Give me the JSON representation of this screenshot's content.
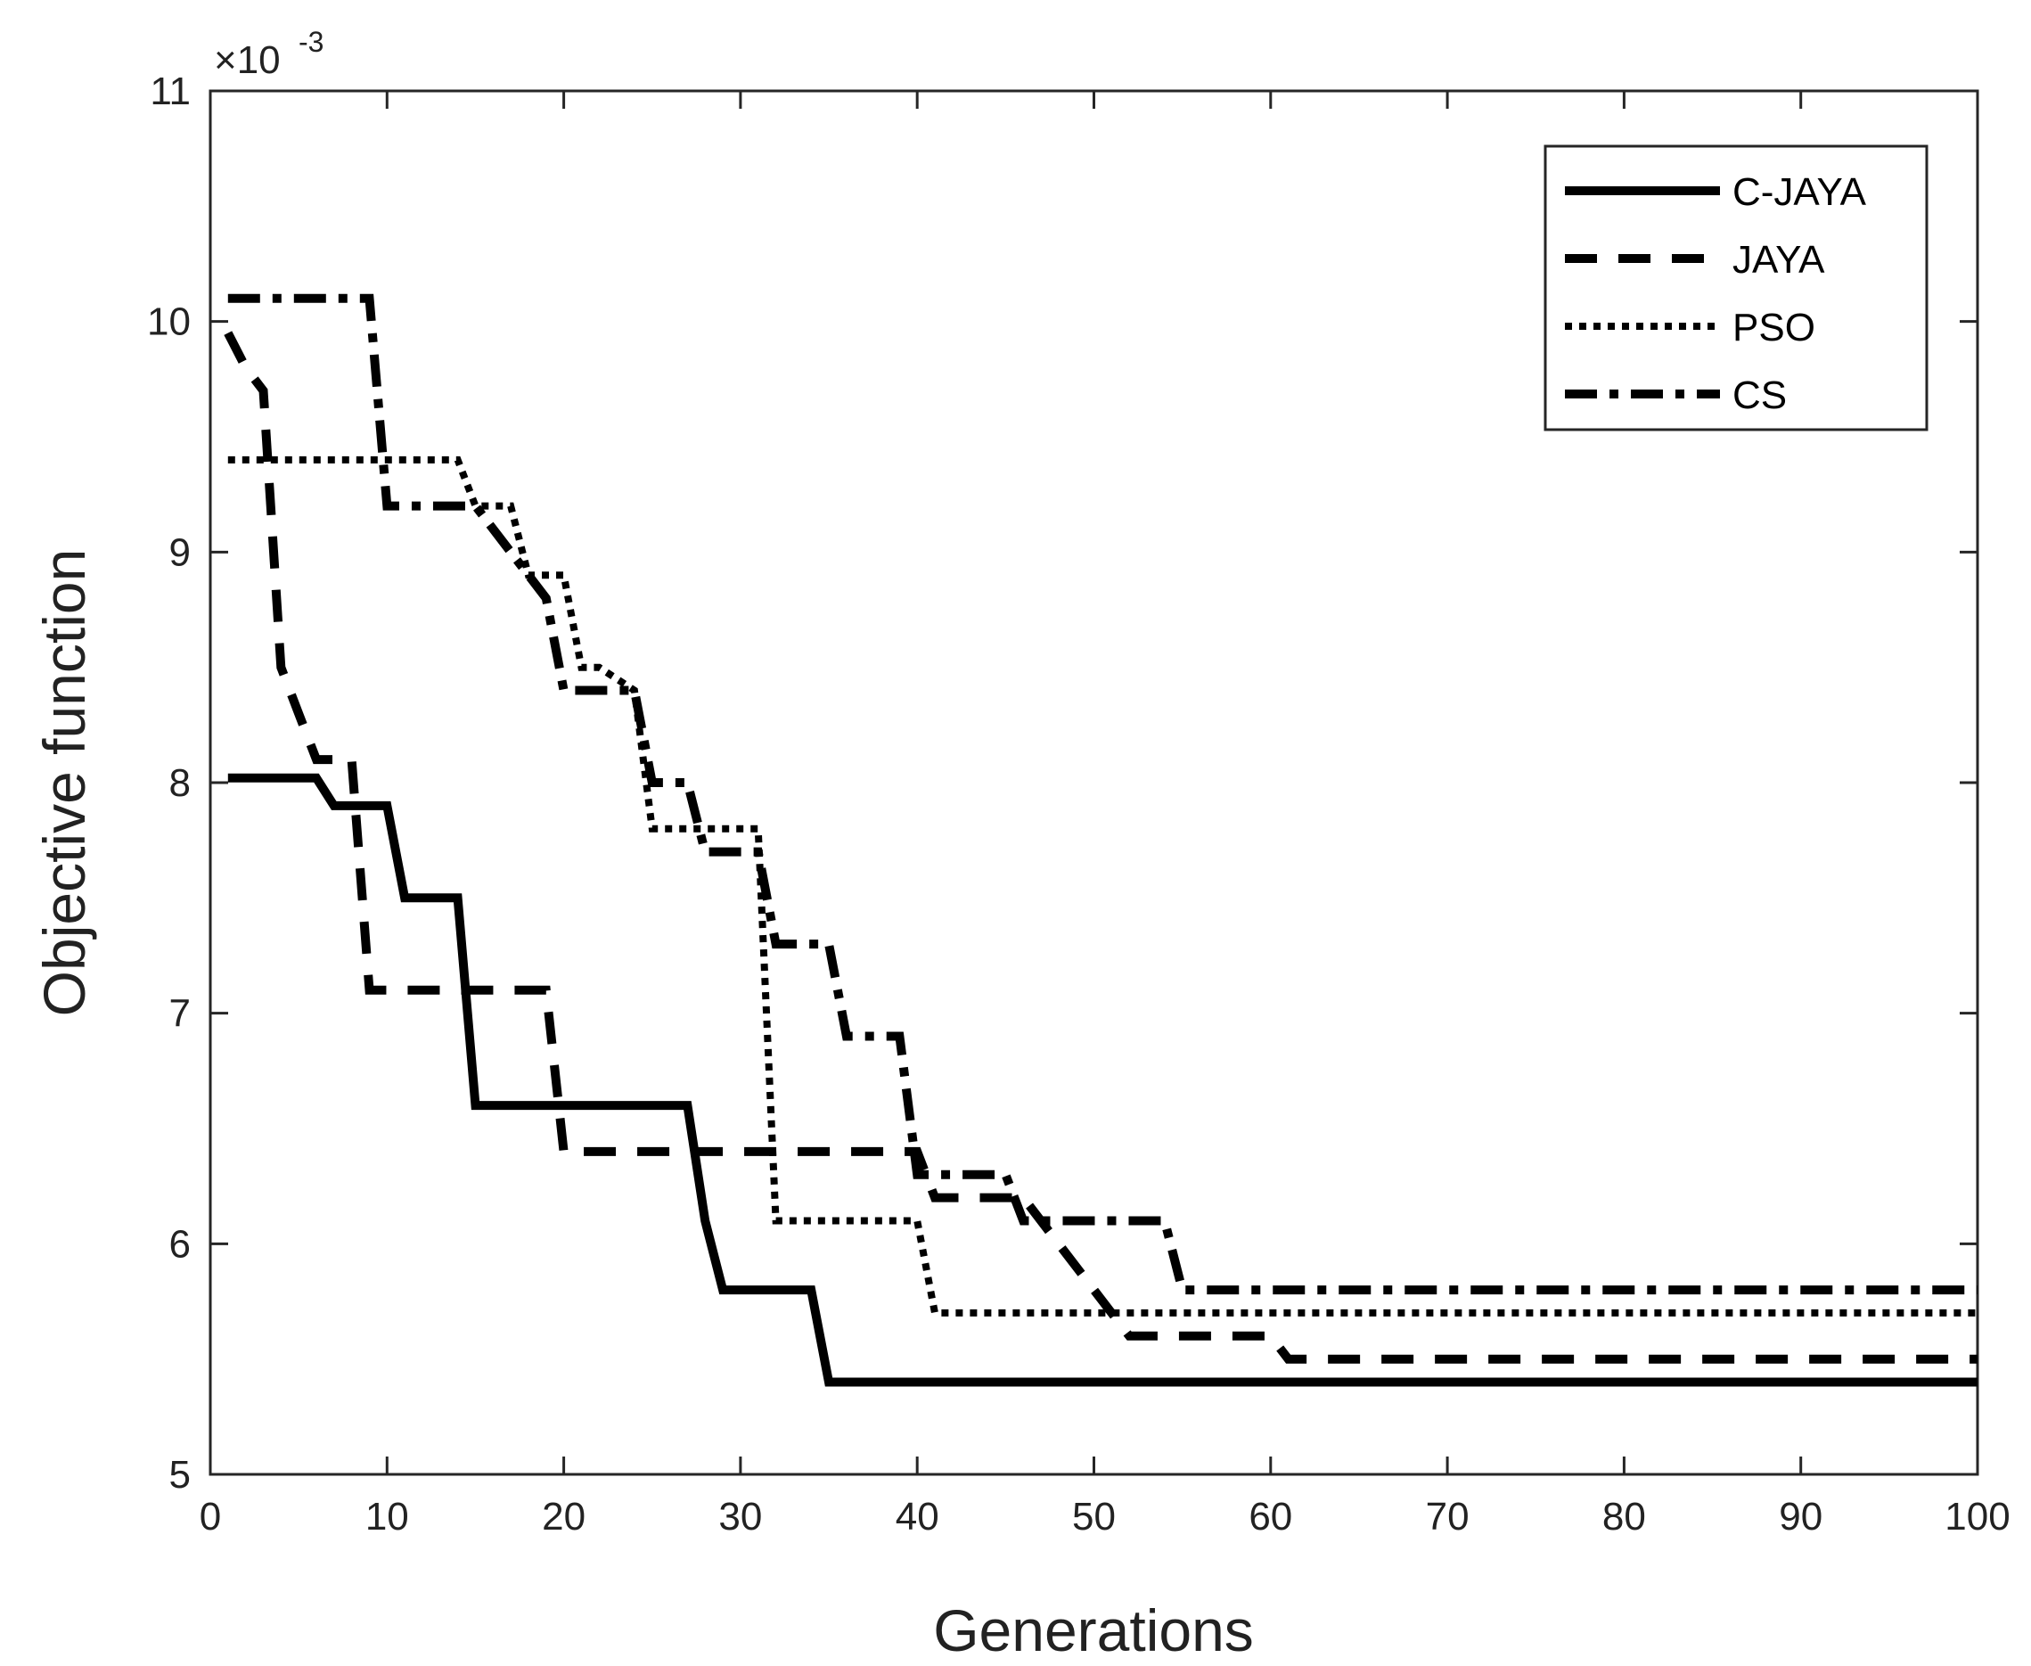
{
  "chart_data": {
    "type": "line",
    "title": "",
    "xlabel": "Generations",
    "ylabel": "Objective function",
    "xlim": [
      0,
      100
    ],
    "ylim": [
      5,
      11
    ],
    "y_scale_exponent": {
      "base": "×10",
      "power": "-3"
    },
    "xticks": [
      "0",
      "10",
      "20",
      "30",
      "40",
      "50",
      "60",
      "70",
      "80",
      "90",
      "100"
    ],
    "yticks": [
      "5",
      "6",
      "7",
      "8",
      "9",
      "10",
      "11"
    ],
    "legend_position": "top-right",
    "grid": false,
    "series": [
      {
        "name": "C-JAYA",
        "style": "solid",
        "x": [
          1,
          6,
          7,
          10,
          11,
          14,
          15,
          27,
          28,
          29,
          34,
          35,
          100
        ],
        "values": [
          8.02,
          8.02,
          7.9,
          7.9,
          7.5,
          7.5,
          6.6,
          6.6,
          6.1,
          5.8,
          5.8,
          5.4,
          5.4
        ]
      },
      {
        "name": "JAYA",
        "style": "dashed",
        "x": [
          1,
          2,
          3,
          4,
          5,
          6,
          7,
          8,
          9,
          19,
          20,
          40,
          41,
          46,
          48,
          52,
          60,
          61,
          100
        ],
        "values": [
          9.95,
          9.8,
          9.7,
          8.5,
          8.3,
          8.1,
          8.1,
          8.1,
          7.1,
          7.1,
          6.4,
          6.4,
          6.2,
          6.2,
          6.0,
          5.6,
          5.6,
          5.5,
          5.5
        ]
      },
      {
        "name": "PSO",
        "style": "dotted",
        "x": [
          1,
          14,
          15,
          17,
          18,
          20,
          21,
          22,
          24,
          25,
          31,
          32,
          40,
          41,
          100
        ],
        "values": [
          9.4,
          9.4,
          9.2,
          9.2,
          8.9,
          8.9,
          8.5,
          8.5,
          8.4,
          7.8,
          7.8,
          6.1,
          6.1,
          5.7,
          5.7
        ]
      },
      {
        "name": "CS",
        "style": "dashdot",
        "x": [
          1,
          9,
          10,
          15,
          17,
          19,
          20,
          24,
          25,
          27,
          28,
          31,
          32,
          35,
          36,
          39,
          40,
          45,
          46,
          54,
          55,
          100
        ],
        "values": [
          10.1,
          10.1,
          9.2,
          9.2,
          9.0,
          8.8,
          8.4,
          8.4,
          8.0,
          8.0,
          7.7,
          7.7,
          7.3,
          7.3,
          6.9,
          6.9,
          6.3,
          6.3,
          6.1,
          6.1,
          5.8,
          5.8
        ]
      }
    ]
  }
}
